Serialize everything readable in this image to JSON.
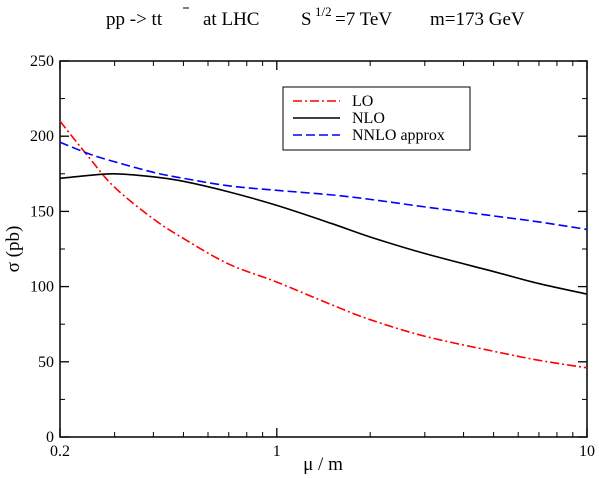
{
  "chart_data": {
    "type": "line",
    "title_parts": {
      "process": "pp -> tt",
      "at": "at  LHC",
      "s_base": "S",
      "s_exp": "1/2",
      "s_val": "=7 TeV",
      "mass": "m=173 GeV"
    },
    "xlabel": "μ / m",
    "ylabel": "σ (pb)",
    "xscale": "log",
    "xlim": [
      0.2,
      10
    ],
    "ylim": [
      0,
      250
    ],
    "xticks": [
      {
        "value": 0.2,
        "label": "0.2"
      },
      {
        "value": 1,
        "label": "1"
      },
      {
        "value": 10,
        "label": "10"
      }
    ],
    "yticks": [
      {
        "value": 0,
        "label": "0"
      },
      {
        "value": 50,
        "label": "50"
      },
      {
        "value": 100,
        "label": "100"
      },
      {
        "value": 150,
        "label": "150"
      },
      {
        "value": 200,
        "label": "200"
      },
      {
        "value": 250,
        "label": "250"
      }
    ],
    "grid": false,
    "legend_position": "top-right",
    "series": [
      {
        "name": "LO",
        "color": "#ff0000",
        "dash": "dash-dot",
        "x": [
          0.2,
          0.25,
          0.3,
          0.4,
          0.5,
          0.7,
          1.0,
          1.5,
          2,
          3,
          5,
          7,
          10
        ],
        "y": [
          210,
          185,
          166,
          145,
          132,
          115,
          103,
          88,
          78,
          67,
          57,
          51,
          46
        ]
      },
      {
        "name": "NLO",
        "color": "#000000",
        "dash": "solid",
        "x": [
          0.2,
          0.25,
          0.3,
          0.4,
          0.5,
          0.7,
          1.0,
          1.5,
          2,
          3,
          5,
          7,
          10
        ],
        "y": [
          172,
          174,
          175,
          173,
          170,
          163,
          154,
          142,
          133,
          122,
          110,
          102,
          95
        ]
      },
      {
        "name": "NNLO approx",
        "color": "#0000ff",
        "dash": "dashed",
        "x": [
          0.2,
          0.25,
          0.3,
          0.4,
          0.5,
          0.7,
          1.0,
          1.5,
          2,
          3,
          5,
          7,
          10
        ],
        "y": [
          196,
          188,
          183,
          176,
          172,
          167,
          164,
          161,
          158,
          153,
          147,
          143,
          138
        ]
      }
    ]
  }
}
